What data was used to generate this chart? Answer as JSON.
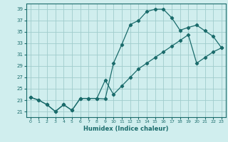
{
  "xlabel": "Humidex (Indice chaleur)",
  "bg_color": "#d0eeee",
  "grid_color": "#a0cccc",
  "line_color": "#1a6b6b",
  "xlim": [
    -0.5,
    23.5
  ],
  "ylim": [
    20.0,
    40.0
  ],
  "yticks": [
    21,
    23,
    25,
    27,
    29,
    31,
    33,
    35,
    37,
    39
  ],
  "xticks": [
    0,
    1,
    2,
    3,
    4,
    5,
    6,
    7,
    8,
    9,
    10,
    11,
    12,
    13,
    14,
    15,
    16,
    17,
    18,
    19,
    20,
    21,
    22,
    23
  ],
  "line1_x": [
    0,
    1,
    2,
    3,
    4,
    5,
    6,
    7,
    8,
    9,
    10,
    11,
    12,
    13,
    14,
    15,
    16,
    17,
    18,
    19,
    20,
    21,
    22,
    23
  ],
  "line1_y": [
    23.5,
    23.0,
    22.2,
    21.0,
    22.2,
    21.2,
    23.3,
    23.3,
    23.3,
    23.2,
    29.5,
    32.8,
    36.3,
    37.0,
    38.6,
    39.0,
    39.0,
    37.5,
    35.3,
    35.8,
    36.2,
    35.2,
    34.2,
    32.2
  ],
  "line2_x": [
    0,
    1,
    2,
    3,
    4,
    5,
    6,
    7,
    8,
    9,
    10,
    11,
    12,
    13,
    14,
    15,
    16,
    17,
    18,
    19,
    20,
    21,
    22,
    23
  ],
  "line2_y": [
    23.5,
    23.0,
    22.2,
    21.0,
    22.2,
    21.2,
    23.3,
    23.3,
    23.3,
    26.5,
    24.0,
    25.5,
    27.0,
    28.5,
    29.5,
    30.5,
    31.5,
    32.5,
    33.5,
    34.5,
    29.5,
    30.5,
    31.5,
    32.2
  ]
}
